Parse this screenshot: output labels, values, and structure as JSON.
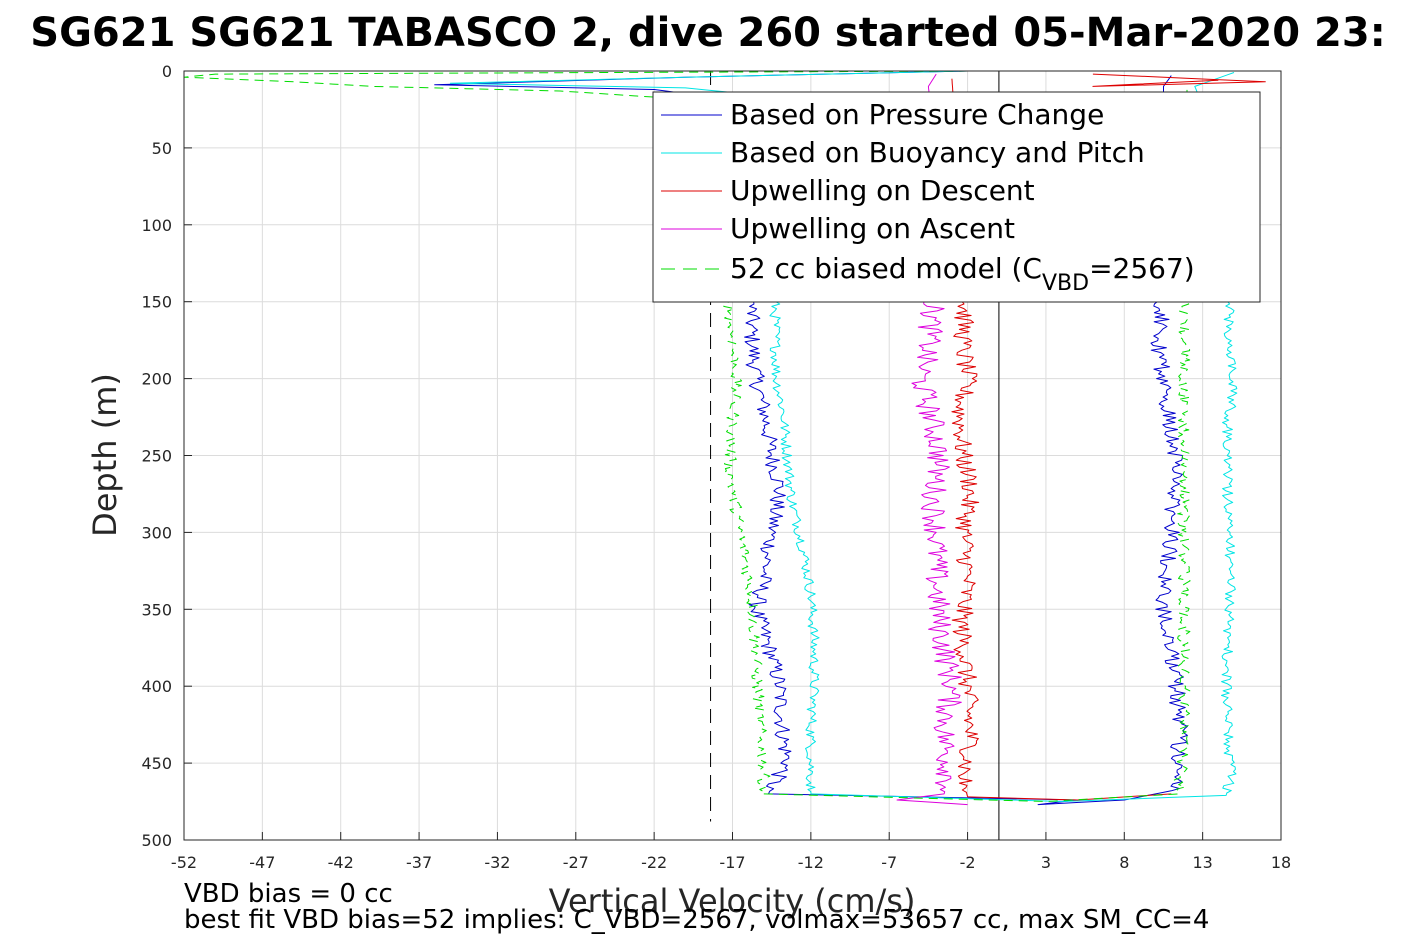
{
  "figure": {
    "title": "SG621 SG621 TABASCO 2, dive 260 started 05-Mar-2020 23:",
    "footnote_1": "VBD bias = 0 cc",
    "footnote_2": "best fit VBD bias=52 implies: C_VBD=2567, volmax=53657 cc, max SM_CC=4"
  },
  "chart_data": {
    "type": "line",
    "xlabel": "Vertical Velocity (cm/s)",
    "ylabel": "Depth (m)",
    "xlim": [
      -52,
      18
    ],
    "ylim": [
      0,
      500
    ],
    "y_reversed": true,
    "grid": true,
    "xticks": [
      -52,
      -47,
      -42,
      -37,
      -32,
      -27,
      -22,
      -17,
      -12,
      -7,
      -2,
      3,
      8,
      13,
      18
    ],
    "yticks": [
      0,
      50,
      100,
      150,
      200,
      250,
      300,
      350,
      400,
      450,
      500
    ],
    "legend_position": "top-right",
    "reference_lines": [
      {
        "x": 0,
        "style": "solid",
        "color": "#000000"
      },
      {
        "x": -18.4,
        "style": "dashed",
        "color": "#000000"
      }
    ],
    "series": [
      {
        "name": "Based on Pressure Change",
        "color": "#0000cc",
        "style": "solid",
        "descent": [
          [
            -2,
            0
          ],
          [
            -20,
            4
          ],
          [
            -36,
            9
          ],
          [
            -22,
            12
          ],
          [
            -19,
            16
          ],
          [
            -18,
            22
          ],
          [
            -17,
            40
          ],
          [
            -16.5,
            80
          ],
          [
            -16,
            120
          ],
          [
            -15.8,
            150
          ],
          [
            -15.8,
            170
          ],
          [
            -15.5,
            200
          ],
          [
            -15,
            220
          ],
          [
            -14.5,
            250
          ],
          [
            -14,
            270
          ],
          [
            -14.5,
            300
          ],
          [
            -15,
            330
          ],
          [
            -15.5,
            350
          ],
          [
            -14.5,
            380
          ],
          [
            -14,
            400
          ],
          [
            -13.8,
            430
          ],
          [
            -13.5,
            450
          ],
          [
            -14.5,
            465
          ],
          [
            -14.7,
            470
          ]
        ],
        "ascent": [
          [
            -14.7,
            470
          ],
          [
            5,
            474
          ],
          [
            2.5,
            477
          ],
          [
            8,
            474
          ],
          [
            11,
            468
          ],
          [
            11.5,
            450
          ],
          [
            11.5,
            420
          ],
          [
            11.3,
            400
          ],
          [
            11,
            370
          ],
          [
            10.5,
            350
          ],
          [
            10.8,
            320
          ],
          [
            11,
            300
          ],
          [
            11.2,
            270
          ],
          [
            11.2,
            250
          ],
          [
            11,
            230
          ],
          [
            10.5,
            215
          ],
          [
            10.5,
            200
          ],
          [
            10.2,
            180
          ],
          [
            10.5,
            160
          ],
          [
            10.3,
            150
          ],
          [
            11,
            120
          ],
          [
            10.5,
            60
          ],
          [
            10.5,
            10
          ],
          [
            11,
            3
          ]
        ]
      },
      {
        "name": "Based on Buoyancy and Pitch",
        "color": "#00e5e5",
        "style": "solid",
        "descent": [
          [
            -2,
            0
          ],
          [
            -20,
            4
          ],
          [
            -35,
            8
          ],
          [
            -20,
            11
          ],
          [
            -17,
            14
          ],
          [
            -15,
            30
          ],
          [
            -14.5,
            80
          ],
          [
            -14.3,
            150
          ],
          [
            -14.2,
            200
          ],
          [
            -13.8,
            220
          ],
          [
            -13.5,
            250
          ],
          [
            -13.2,
            280
          ],
          [
            -12.5,
            310
          ],
          [
            -12,
            340
          ],
          [
            -11.8,
            370
          ],
          [
            -11.8,
            400
          ],
          [
            -12,
            430
          ],
          [
            -12,
            460
          ],
          [
            -12,
            470
          ]
        ],
        "ascent": [
          [
            -12,
            470
          ],
          [
            4,
            475
          ],
          [
            14.5,
            471
          ],
          [
            14.8,
            460
          ],
          [
            14.6,
            430
          ],
          [
            14.5,
            400
          ],
          [
            14.6,
            370
          ],
          [
            14.8,
            340
          ],
          [
            14.7,
            300
          ],
          [
            14.6,
            270
          ],
          [
            14.6,
            250
          ],
          [
            14.6,
            230
          ],
          [
            15,
            205
          ],
          [
            14.6,
            180
          ],
          [
            14.7,
            160
          ],
          [
            14.8,
            150
          ],
          [
            14.5,
            60
          ],
          [
            12.5,
            10
          ],
          [
            15,
            1
          ]
        ]
      },
      {
        "name": "Upwelling on Descent",
        "color": "#dd0000",
        "style": "solid",
        "descent": [
          [
            -3,
            5
          ],
          [
            -2.6,
            60
          ],
          [
            -2.3,
            120
          ],
          [
            -2.2,
            150
          ],
          [
            -2.3,
            180
          ],
          [
            -2,
            200
          ],
          [
            -2.5,
            220
          ],
          [
            -2.3,
            250
          ],
          [
            -1.8,
            270
          ],
          [
            -2.2,
            300
          ],
          [
            -2,
            330
          ],
          [
            -2.4,
            360
          ],
          [
            -2,
            400
          ],
          [
            -1.8,
            440
          ],
          [
            -2.3,
            460
          ],
          [
            -2,
            472
          ]
        ],
        "ascent": [
          [
            -2,
            472
          ],
          [
            5,
            474
          ],
          [
            11,
            470
          ]
        ],
        "surface": [
          [
            6,
            2
          ],
          [
            17,
            7
          ],
          [
            6,
            10
          ],
          [
            14,
            6
          ]
        ]
      },
      {
        "name": "Upwelling on Ascent",
        "color": "#dd00dd",
        "style": "solid",
        "descent": [
          [
            -4,
            2
          ],
          [
            -4.5,
            10
          ],
          [
            -4,
            60
          ],
          [
            -4.2,
            150
          ],
          [
            -4.5,
            180
          ],
          [
            -5,
            200
          ],
          [
            -4.2,
            230
          ],
          [
            -3.8,
            250
          ],
          [
            -4.2,
            280
          ],
          [
            -4,
            300
          ],
          [
            -4,
            330
          ],
          [
            -3.8,
            360
          ],
          [
            -3,
            400
          ],
          [
            -3.5,
            430
          ],
          [
            -3.2,
            460
          ],
          [
            -3.5,
            470
          ],
          [
            -6.5,
            474
          ],
          [
            -2,
            477
          ]
        ]
      },
      {
        "name": "52 cc biased model (C_VBD=2567)",
        "legend_main": "52 cc biased model (C",
        "legend_sub": "VBD",
        "legend_tail": "=2567)",
        "color": "#00dd00",
        "style": "dashed",
        "descent": [
          [
            -1,
            0
          ],
          [
            -50,
            2
          ],
          [
            -52,
            4
          ],
          [
            -45,
            7
          ],
          [
            -40,
            10
          ],
          [
            -28,
            13
          ],
          [
            -22,
            17
          ],
          [
            -18,
            25
          ],
          [
            -17.5,
            60
          ],
          [
            -17.2,
            120
          ],
          [
            -17.2,
            150
          ],
          [
            -16.8,
            200
          ],
          [
            -17,
            230
          ],
          [
            -17.2,
            260
          ],
          [
            -16.5,
            300
          ],
          [
            -15.8,
            340
          ],
          [
            -15.5,
            380
          ],
          [
            -15.3,
            420
          ],
          [
            -15,
            460
          ],
          [
            -15,
            470
          ]
        ],
        "ascent": [
          [
            -15,
            470
          ],
          [
            3,
            475
          ],
          [
            11.5,
            470
          ],
          [
            11.8,
            440
          ],
          [
            11.8,
            400
          ],
          [
            11.8,
            360
          ],
          [
            11.8,
            300
          ],
          [
            11.8,
            250
          ],
          [
            11.8,
            200
          ],
          [
            11.8,
            150
          ],
          [
            12,
            60
          ],
          [
            12,
            10
          ]
        ]
      }
    ]
  }
}
